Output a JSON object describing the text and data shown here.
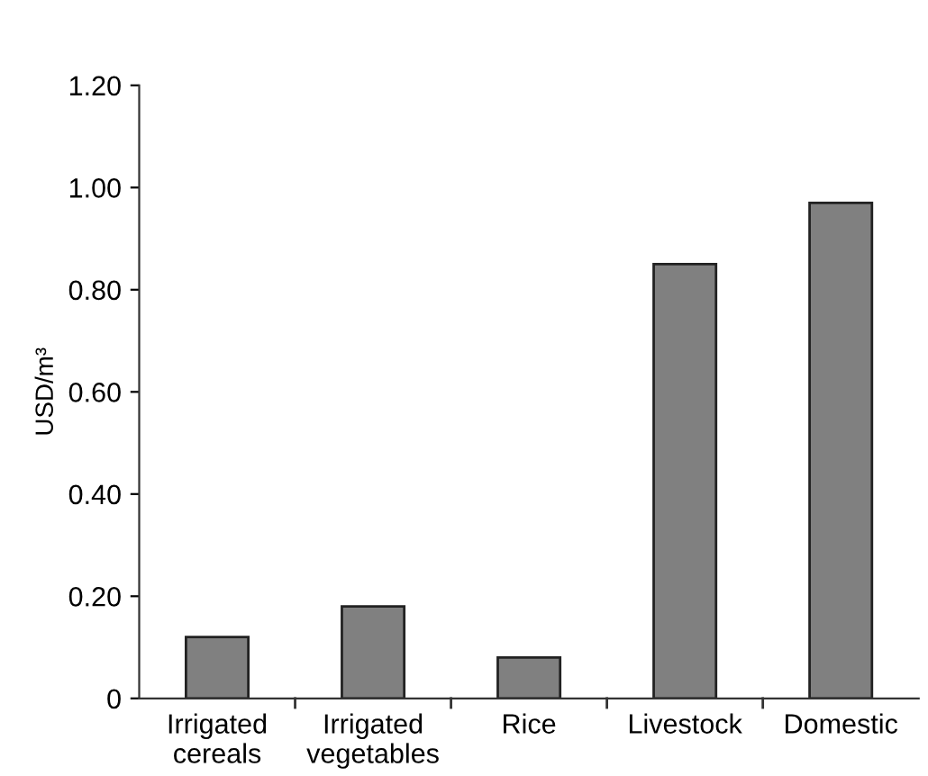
{
  "chart_data": {
    "type": "bar",
    "ylabel": "USD/m³",
    "categories": [
      "Irrigated\ncereals",
      "Irrigated\nvegetables",
      "Rice",
      "Livestock",
      "Domestic"
    ],
    "values": [
      0.12,
      0.18,
      0.08,
      0.85,
      0.97
    ],
    "color": "#808080",
    "ylim": [
      0,
      1.2
    ],
    "yticks": [
      0,
      {
        "value": 0.2,
        "label": "0.20"
      },
      {
        "value": 0.4,
        "label": "0.40"
      },
      {
        "value": 0.6,
        "label": "0.60"
      },
      {
        "value": 0.8,
        "label": "0.80"
      },
      {
        "value": 1.0,
        "label": "1.00"
      },
      {
        "value": 1.2,
        "label": "1.20"
      }
    ],
    "grid": false
  }
}
